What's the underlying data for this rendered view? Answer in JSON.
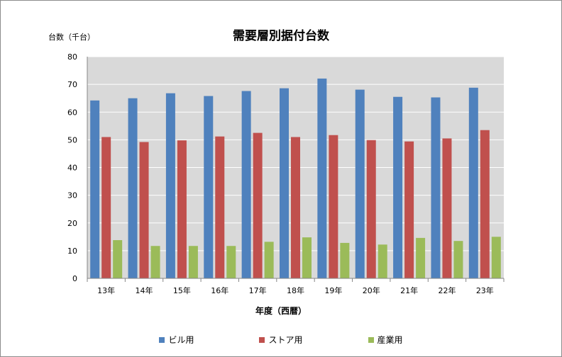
{
  "chart_data": {
    "type": "bar",
    "title": "需要層別据付台数",
    "ylabel": "台数（千台）",
    "xlabel": "年度（西暦）",
    "categories": [
      "13年",
      "14年",
      "15年",
      "16年",
      "17年",
      "18年",
      "19年",
      "20年",
      "21年",
      "22年",
      "23年"
    ],
    "ylim": [
      0,
      80
    ],
    "yticks": [
      "0",
      "10",
      "20",
      "30",
      "40",
      "50",
      "60",
      "70",
      "80"
    ],
    "grid": true,
    "legend_position": "bottom",
    "series": [
      {
        "name": "ビル用",
        "color": "#4f81bd",
        "values": [
          64.2,
          65.0,
          66.8,
          65.8,
          67.6,
          68.6,
          72.1,
          68.1,
          65.5,
          65.3,
          68.8
        ]
      },
      {
        "name": "ストア用",
        "color": "#c0504d",
        "values": [
          51.0,
          49.2,
          49.8,
          51.2,
          52.5,
          51.0,
          51.7,
          49.9,
          49.4,
          50.5,
          53.5
        ]
      },
      {
        "name": "産業用",
        "color": "#9bbb59",
        "values": [
          13.8,
          11.7,
          11.7,
          11.7,
          13.2,
          14.8,
          12.8,
          12.2,
          14.6,
          13.5,
          15.0
        ]
      }
    ]
  }
}
